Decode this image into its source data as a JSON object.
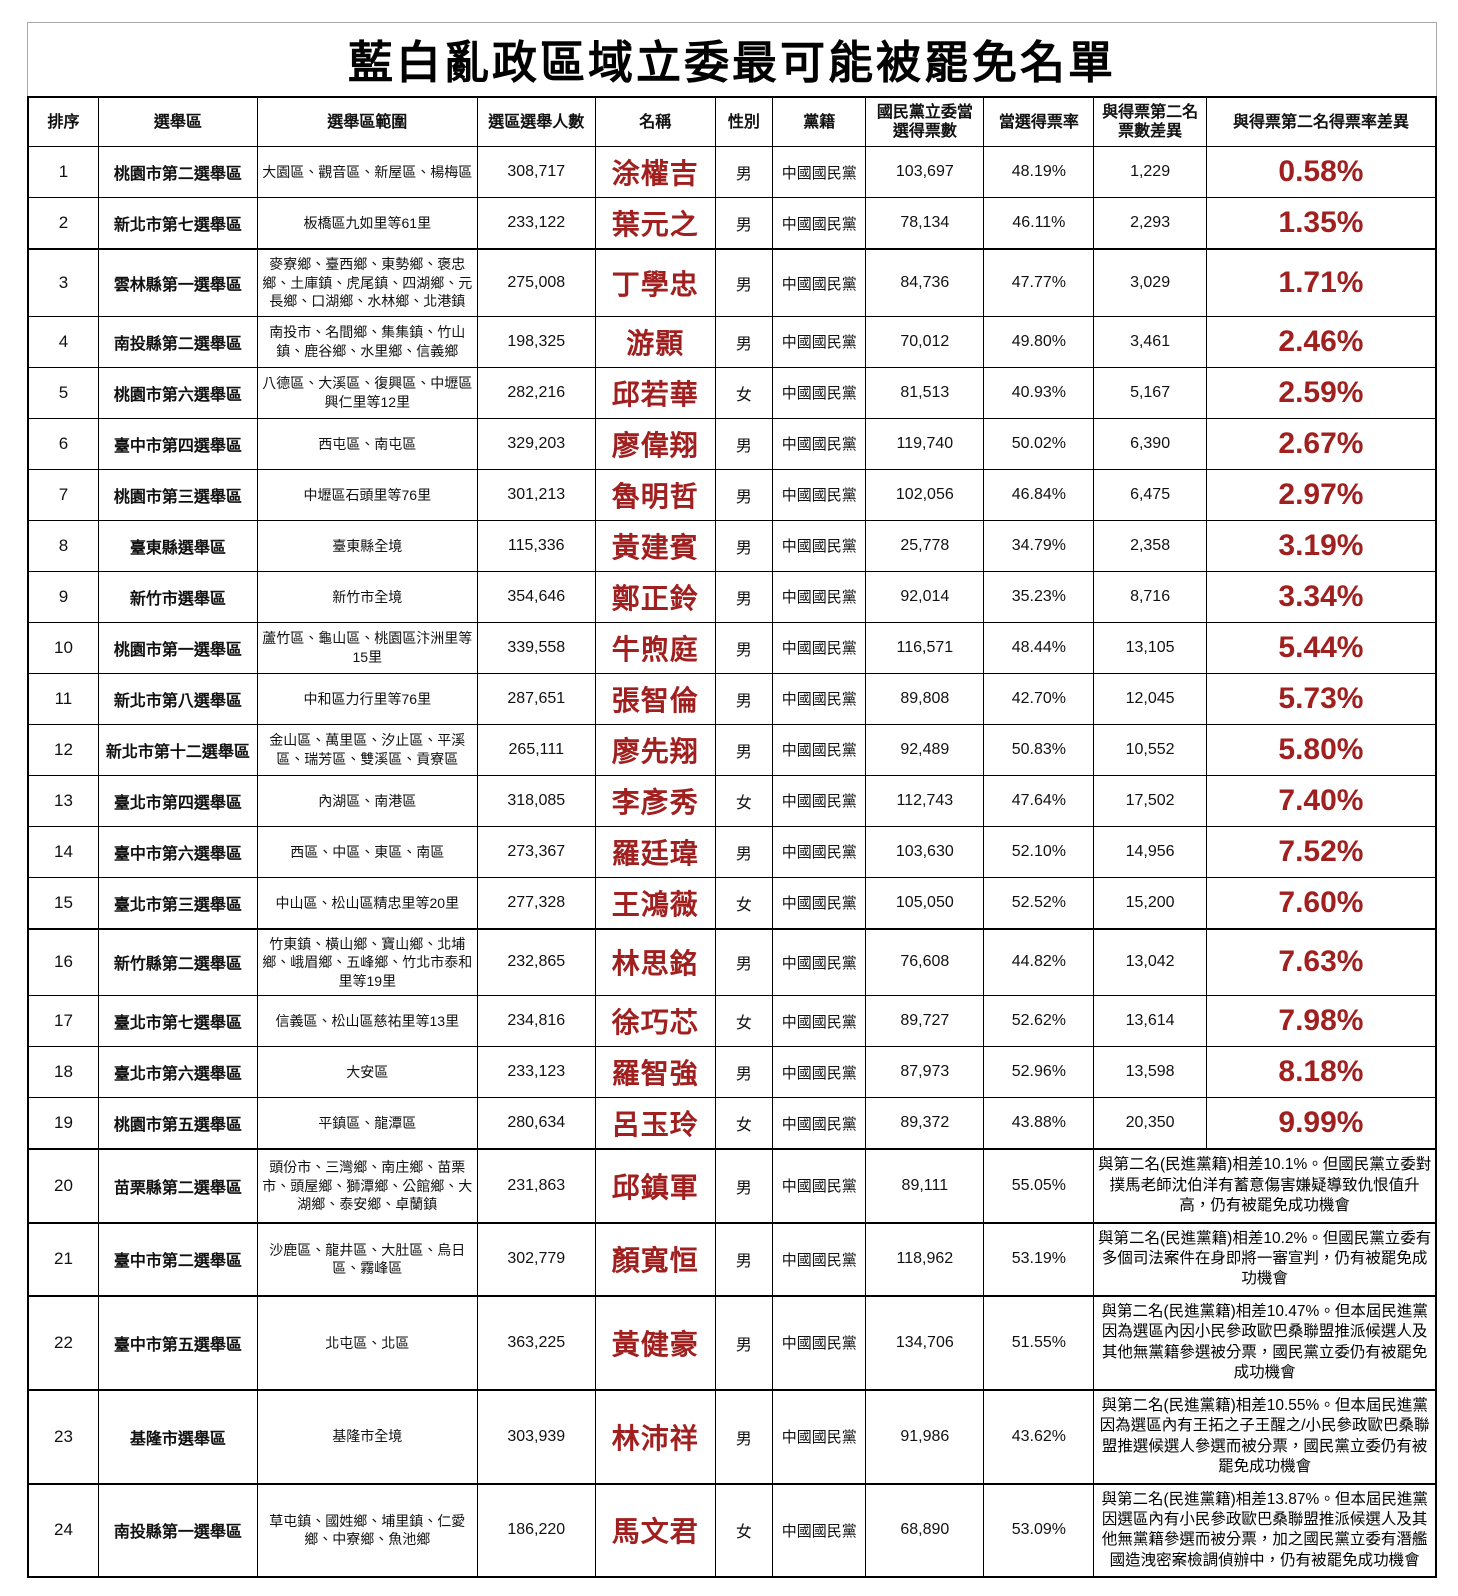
{
  "title": "藍白亂政區域立委最可能被罷免名單",
  "colors": {
    "highlight_red": "#a02020",
    "border_black": "#000000"
  },
  "table": {
    "headers": [
      "排序",
      "選舉區",
      "選舉區範圍",
      "選區選舉人數",
      "名稱",
      "性別",
      "黨籍",
      "國民黨立委當選得票數",
      "當選得票率",
      "與得票第二名票數差異",
      "與得票第二名得票率差異"
    ],
    "rows": [
      {
        "rank": "1",
        "district": "桃園市第二選舉區",
        "scope": "大園區、觀音區、新屋區、楊梅區",
        "voters": "308,717",
        "name": "涂權吉",
        "gender": "男",
        "party": "中國國民黨",
        "votes": "103,697",
        "vote_rate": "48.19%",
        "diff_votes": "1,229",
        "diff_rate": "0.58%"
      },
      {
        "rank": "2",
        "district": "新北市第七選舉區",
        "scope": "板橋區九如里等61里",
        "voters": "233,122",
        "name": "葉元之",
        "gender": "男",
        "party": "中國國民黨",
        "votes": "78,134",
        "vote_rate": "46.11%",
        "diff_votes": "2,293",
        "diff_rate": "1.35%"
      },
      {
        "rank": "3",
        "district": "雲林縣第一選舉區",
        "scope": "麥寮鄉、臺西鄉、東勢鄉、褒忠鄉、土庫鎮、虎尾鎮、四湖鄉、元長鄉、口湖鄉、水林鄉、北港鎮",
        "voters": "275,008",
        "name": "丁學忠",
        "gender": "男",
        "party": "中國國民黨",
        "votes": "84,736",
        "vote_rate": "47.77%",
        "diff_votes": "3,029",
        "diff_rate": "1.71%"
      },
      {
        "rank": "4",
        "district": "南投縣第二選舉區",
        "scope": "南投市、名間鄉、集集鎮、竹山鎮、鹿谷鄉、水里鄉、信義鄉",
        "voters": "198,325",
        "name": "游顥",
        "gender": "男",
        "party": "中國國民黨",
        "votes": "70,012",
        "vote_rate": "49.80%",
        "diff_votes": "3,461",
        "diff_rate": "2.46%"
      },
      {
        "rank": "5",
        "district": "桃園市第六選舉區",
        "scope": "八德區、大溪區、復興區、中壢區興仁里等12里",
        "voters": "282,216",
        "name": "邱若華",
        "gender": "女",
        "party": "中國國民黨",
        "votes": "81,513",
        "vote_rate": "40.93%",
        "diff_votes": "5,167",
        "diff_rate": "2.59%"
      },
      {
        "rank": "6",
        "district": "臺中市第四選舉區",
        "scope": "西屯區、南屯區",
        "voters": "329,203",
        "name": "廖偉翔",
        "gender": "男",
        "party": "中國國民黨",
        "votes": "119,740",
        "vote_rate": "50.02%",
        "diff_votes": "6,390",
        "diff_rate": "2.67%"
      },
      {
        "rank": "7",
        "district": "桃園市第三選舉區",
        "scope": "中壢區石頭里等76里",
        "voters": "301,213",
        "name": "魯明哲",
        "gender": "男",
        "party": "中國國民黨",
        "votes": "102,056",
        "vote_rate": "46.84%",
        "diff_votes": "6,475",
        "diff_rate": "2.97%"
      },
      {
        "rank": "8",
        "district": "臺東縣選舉區",
        "scope": "臺東縣全境",
        "voters": "115,336",
        "name": "黃建賓",
        "gender": "男",
        "party": "中國國民黨",
        "votes": "25,778",
        "vote_rate": "34.79%",
        "diff_votes": "2,358",
        "diff_rate": "3.19%"
      },
      {
        "rank": "9",
        "district": "新竹市選舉區",
        "scope": "新竹市全境",
        "voters": "354,646",
        "name": "鄭正鈴",
        "gender": "男",
        "party": "中國國民黨",
        "votes": "92,014",
        "vote_rate": "35.23%",
        "diff_votes": "8,716",
        "diff_rate": "3.34%"
      },
      {
        "rank": "10",
        "district": "桃園市第一選舉區",
        "scope": "蘆竹區、龜山區、桃園區汴洲里等15里",
        "voters": "339,558",
        "name": "牛煦庭",
        "gender": "男",
        "party": "中國國民黨",
        "votes": "116,571",
        "vote_rate": "48.44%",
        "diff_votes": "13,105",
        "diff_rate": "5.44%"
      },
      {
        "rank": "11",
        "district": "新北市第八選舉區",
        "scope": "中和區力行里等76里",
        "voters": "287,651",
        "name": "張智倫",
        "gender": "男",
        "party": "中國國民黨",
        "votes": "89,808",
        "vote_rate": "42.70%",
        "diff_votes": "12,045",
        "diff_rate": "5.73%"
      },
      {
        "rank": "12",
        "district": "新北市第十二選舉區",
        "scope": "金山區、萬里區、汐止區、平溪區、瑞芳區、雙溪區、貢寮區",
        "voters": "265,111",
        "name": "廖先翔",
        "gender": "男",
        "party": "中國國民黨",
        "votes": "92,489",
        "vote_rate": "50.83%",
        "diff_votes": "10,552",
        "diff_rate": "5.80%"
      },
      {
        "rank": "13",
        "district": "臺北市第四選舉區",
        "scope": "內湖區、南港區",
        "voters": "318,085",
        "name": "李彥秀",
        "gender": "女",
        "party": "中國國民黨",
        "votes": "112,743",
        "vote_rate": "47.64%",
        "diff_votes": "17,502",
        "diff_rate": "7.40%"
      },
      {
        "rank": "14",
        "district": "臺中市第六選舉區",
        "scope": "西區、中區、東區、南區",
        "voters": "273,367",
        "name": "羅廷瑋",
        "gender": "男",
        "party": "中國國民黨",
        "votes": "103,630",
        "vote_rate": "52.10%",
        "diff_votes": "14,956",
        "diff_rate": "7.52%"
      },
      {
        "rank": "15",
        "district": "臺北市第三選舉區",
        "scope": "中山區、松山區精忠里等20里",
        "voters": "277,328",
        "name": "王鴻薇",
        "gender": "女",
        "party": "中國國民黨",
        "votes": "105,050",
        "vote_rate": "52.52%",
        "diff_votes": "15,200",
        "diff_rate": "7.60%"
      },
      {
        "rank": "16",
        "district": "新竹縣第二選舉區",
        "scope": "竹東鎮、橫山鄉、寶山鄉、北埔鄉、峨眉鄉、五峰鄉、竹北市泰和里等19里",
        "voters": "232,865",
        "name": "林思銘",
        "gender": "男",
        "party": "中國國民黨",
        "votes": "76,608",
        "vote_rate": "44.82%",
        "diff_votes": "13,042",
        "diff_rate": "7.63%"
      },
      {
        "rank": "17",
        "district": "臺北市第七選舉區",
        "scope": "信義區、松山區慈祐里等13里",
        "voters": "234,816",
        "name": "徐巧芯",
        "gender": "女",
        "party": "中國國民黨",
        "votes": "89,727",
        "vote_rate": "52.62%",
        "diff_votes": "13,614",
        "diff_rate": "7.98%"
      },
      {
        "rank": "18",
        "district": "臺北市第六選舉區",
        "scope": "大安區",
        "voters": "233,123",
        "name": "羅智強",
        "gender": "男",
        "party": "中國國民黨",
        "votes": "87,973",
        "vote_rate": "52.96%",
        "diff_votes": "13,598",
        "diff_rate": "8.18%"
      },
      {
        "rank": "19",
        "district": "桃園市第五選舉區",
        "scope": "平鎮區、龍潭區",
        "voters": "280,634",
        "name": "呂玉玲",
        "gender": "女",
        "party": "中國國民黨",
        "votes": "89,372",
        "vote_rate": "43.88%",
        "diff_votes": "20,350",
        "diff_rate": "9.99%"
      },
      {
        "rank": "20",
        "district": "苗栗縣第二選舉區",
        "scope": "頭份市、三灣鄉、南庄鄉、苗栗市、頭屋鄉、獅潭鄉、公館鄉、大湖鄉、泰安鄉、卓蘭鎮",
        "voters": "231,863",
        "name": "邱鎮軍",
        "gender": "男",
        "party": "中國國民黨",
        "votes": "89,111",
        "vote_rate": "55.05%",
        "note": "與第二名(民進黨籍)相差10.1%。但國民黨立委對撲馬老師沈伯洋有蓄意傷害嫌疑導致仇恨值升高，仍有被罷免成功機會"
      },
      {
        "rank": "21",
        "district": "臺中市第二選舉區",
        "scope": "沙鹿區、龍井區、大肚區、烏日區、霧峰區",
        "voters": "302,779",
        "name": "顏寬恒",
        "gender": "男",
        "party": "中國國民黨",
        "votes": "118,962",
        "vote_rate": "53.19%",
        "note": "與第二名(民進黨籍)相差10.2%。但國民黨立委有多個司法案件在身即將一審宣判，仍有被罷免成功機會"
      },
      {
        "rank": "22",
        "district": "臺中市第五選舉區",
        "scope": "北屯區、北區",
        "voters": "363,225",
        "name": "黃健豪",
        "gender": "男",
        "party": "中國國民黨",
        "votes": "134,706",
        "vote_rate": "51.55%",
        "note": "與第二名(民進黨籍)相差10.47%。但本屆民進黨因為選區內因小民參政歐巴桑聯盟推派候選人及其他無黨籍參選被分票，國民黨立委仍有被罷免成功機會"
      },
      {
        "rank": "23",
        "district": "基隆市選舉區",
        "scope": "基隆市全境",
        "voters": "303,939",
        "name": "林沛祥",
        "gender": "男",
        "party": "中國國民黨",
        "votes": "91,986",
        "vote_rate": "43.62%",
        "note": "與第二名(民進黨籍)相差10.55%。但本屆民進黨因為選區內有王拓之子王醒之/小民參政歐巴桑聯盟推選候選人參選而被分票，國民黨立委仍有被罷免成功機會"
      },
      {
        "rank": "24",
        "district": "南投縣第一選舉區",
        "scope": "草屯鎮、國姓鄉、埔里鎮、仁愛鄉、中寮鄉、魚池鄉",
        "voters": "186,220",
        "name": "馬文君",
        "gender": "女",
        "party": "中國國民黨",
        "votes": "68,890",
        "vote_rate": "53.09%",
        "note": "與第二名(民進黨籍)相差13.87%。但本屆民進黨因選區內有小民參政歐巴桑聯盟推派候選人及其他無黨籍參選而被分票，加之國民黨立委有潛艦國造洩密案檢調偵辦中，仍有被罷免成功機會"
      }
    ]
  }
}
